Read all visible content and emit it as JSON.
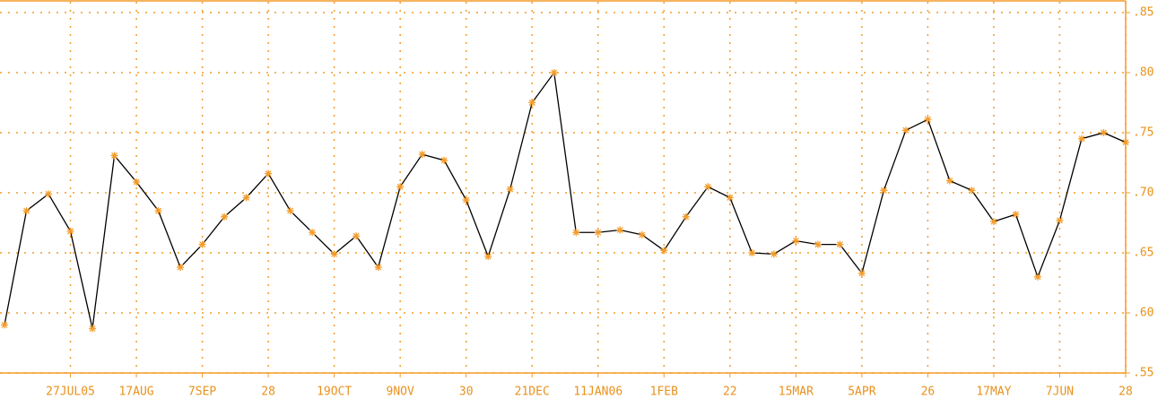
{
  "chart_data": {
    "type": "line",
    "categories": [
      null,
      null,
      null,
      "27JUL05",
      null,
      null,
      "17AUG",
      null,
      null,
      "7SEP",
      null,
      null,
      "28",
      null,
      null,
      "19OCT",
      null,
      null,
      "9NOV",
      null,
      null,
      "30",
      null,
      null,
      "21DEC",
      null,
      null,
      "11JAN06",
      null,
      null,
      "1FEB",
      null,
      null,
      "22",
      null,
      null,
      "15MAR",
      null,
      null,
      "5APR",
      null,
      null,
      "26",
      null,
      null,
      "17MAY",
      null,
      null,
      "7JUN",
      null,
      null,
      "28"
    ],
    "series": [
      {
        "color": "#000000",
        "marker_color": "#f39c2a",
        "values": [
          0.59,
          0.685,
          0.699,
          0.668,
          0.587,
          0.731,
          0.709,
          0.685,
          0.638,
          0.657,
          0.68,
          0.696,
          0.716,
          0.685,
          0.667,
          0.649,
          0.664,
          0.638,
          0.705,
          0.732,
          0.727,
          0.694,
          0.647,
          0.703,
          0.775,
          0.8,
          0.667,
          0.667,
          0.669,
          0.665,
          0.652,
          0.68,
          0.705,
          0.696,
          0.65,
          0.649,
          0.66,
          0.657,
          0.657,
          0.633,
          0.702,
          0.752,
          0.761,
          0.71,
          0.702,
          0.676,
          0.682,
          0.63,
          0.677,
          0.745,
          0.75,
          0.742
        ]
      }
    ],
    "ylim": [
      0.55,
      0.85
    ],
    "yticks": [
      {
        "value": 0.55,
        "label": ".55"
      },
      {
        "value": 0.6,
        "label": ".60"
      },
      {
        "value": 0.65,
        "label": ".65"
      },
      {
        "value": 0.7,
        "label": ".70"
      },
      {
        "value": 0.75,
        "label": ".75"
      },
      {
        "value": 0.8,
        "label": ".80"
      },
      {
        "value": 0.85,
        "label": ".85"
      }
    ],
    "grid": true,
    "grid_color": "#f39c2a"
  }
}
